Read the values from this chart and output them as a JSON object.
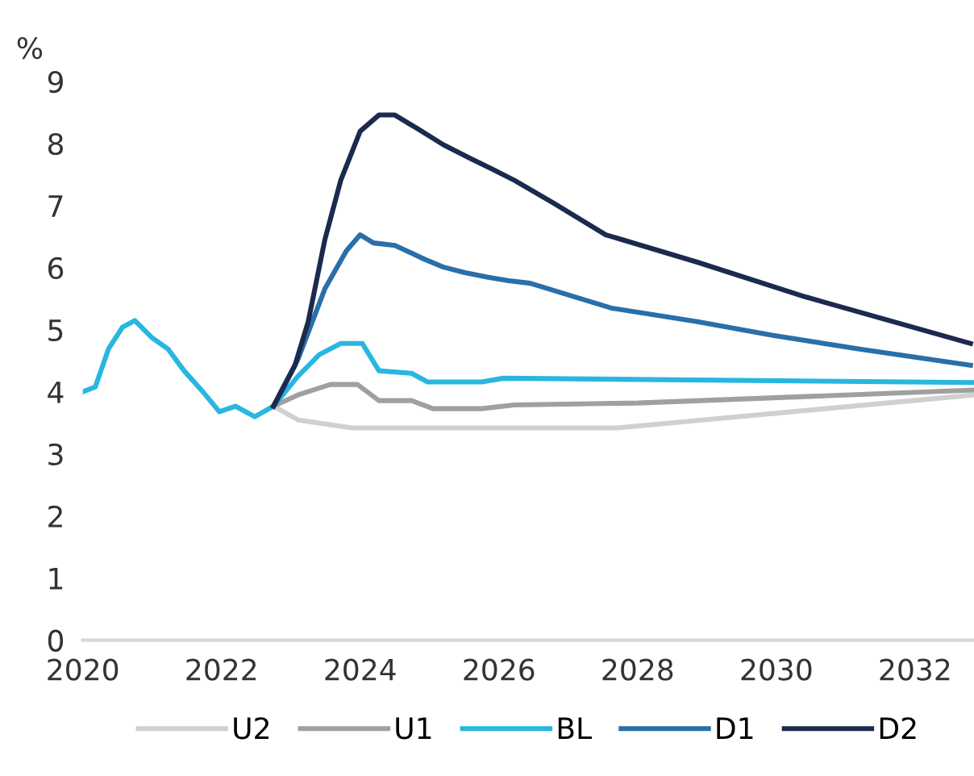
{
  "chart_data": {
    "type": "line",
    "ylabel": "%",
    "xlim": [
      2020,
      2032.85
    ],
    "xticks": [
      2020,
      2022,
      2024,
      2026,
      2028,
      2030,
      2032
    ],
    "ylim": [
      0,
      9
    ],
    "yticks": [
      0,
      1,
      2,
      3,
      4,
      5,
      6,
      7,
      8,
      9
    ],
    "grid": false,
    "legend": "bottom",
    "marker": "none",
    "line_style": "solid",
    "series": [
      {
        "name": "U2",
        "color": "#d0d0d0",
        "x": [
          2022.75,
          2023.1,
          2023.88,
          2027.7,
          2032.85
        ],
        "values": [
          3.77,
          3.55,
          3.42,
          3.42,
          3.95
        ]
      },
      {
        "name": "U1",
        "color": "#a0a0a0",
        "x": [
          2022.75,
          2023.1,
          2023.57,
          2023.96,
          2024.27,
          2024.74,
          2025.05,
          2025.75,
          2026.22,
          2028,
          2032.85
        ],
        "values": [
          3.77,
          3.95,
          4.12,
          4.12,
          3.86,
          3.86,
          3.73,
          3.73,
          3.79,
          3.82,
          4.03
        ]
      },
      {
        "name": "BL",
        "color": "#29b6e0",
        "x": [
          2020,
          2020.18,
          2020.37,
          2020.57,
          2020.75,
          2021.0,
          2021.23,
          2021.46,
          2021.74,
          2021.97,
          2022.2,
          2022.48,
          2022.75,
          2023.1,
          2023.41,
          2023.72,
          2024.03,
          2024.27,
          2024.74,
          2024.97,
          2025.75,
          2026.06,
          2032.85
        ],
        "values": [
          4.0,
          4.08,
          4.69,
          5.04,
          5.15,
          4.87,
          4.69,
          4.34,
          3.99,
          3.68,
          3.77,
          3.6,
          3.77,
          4.25,
          4.6,
          4.78,
          4.78,
          4.34,
          4.3,
          4.16,
          4.16,
          4.22,
          4.15
        ]
      },
      {
        "name": "D1",
        "color": "#2a6fa8",
        "x": [
          2022.75,
          2023.1,
          2023.49,
          2023.8,
          2024.0,
          2024.19,
          2024.5,
          2024.92,
          2025.2,
          2025.51,
          2025.83,
          2026.14,
          2026.45,
          2027.62,
          2028.86,
          2029.95,
          2031.2,
          2032.8
        ],
        "values": [
          3.77,
          4.52,
          5.66,
          6.27,
          6.53,
          6.4,
          6.36,
          6.14,
          6.01,
          5.92,
          5.85,
          5.79,
          5.75,
          5.35,
          5.13,
          4.91,
          4.69,
          4.43
        ]
      },
      {
        "name": "D2",
        "color": "#1b2a4e",
        "x": [
          2022.75,
          2023.06,
          2023.25,
          2023.49,
          2023.72,
          2024.0,
          2024.27,
          2024.5,
          2024.81,
          2025.2,
          2025.59,
          2025.9,
          2026.22,
          2026.76,
          2027.54,
          2028.86,
          2030.42,
          2032.8
        ],
        "values": [
          3.77,
          4.43,
          5.13,
          6.45,
          7.41,
          8.2,
          8.46,
          8.46,
          8.25,
          7.98,
          7.76,
          7.59,
          7.41,
          7.06,
          6.53,
          6.09,
          5.53,
          4.78
        ]
      }
    ]
  }
}
